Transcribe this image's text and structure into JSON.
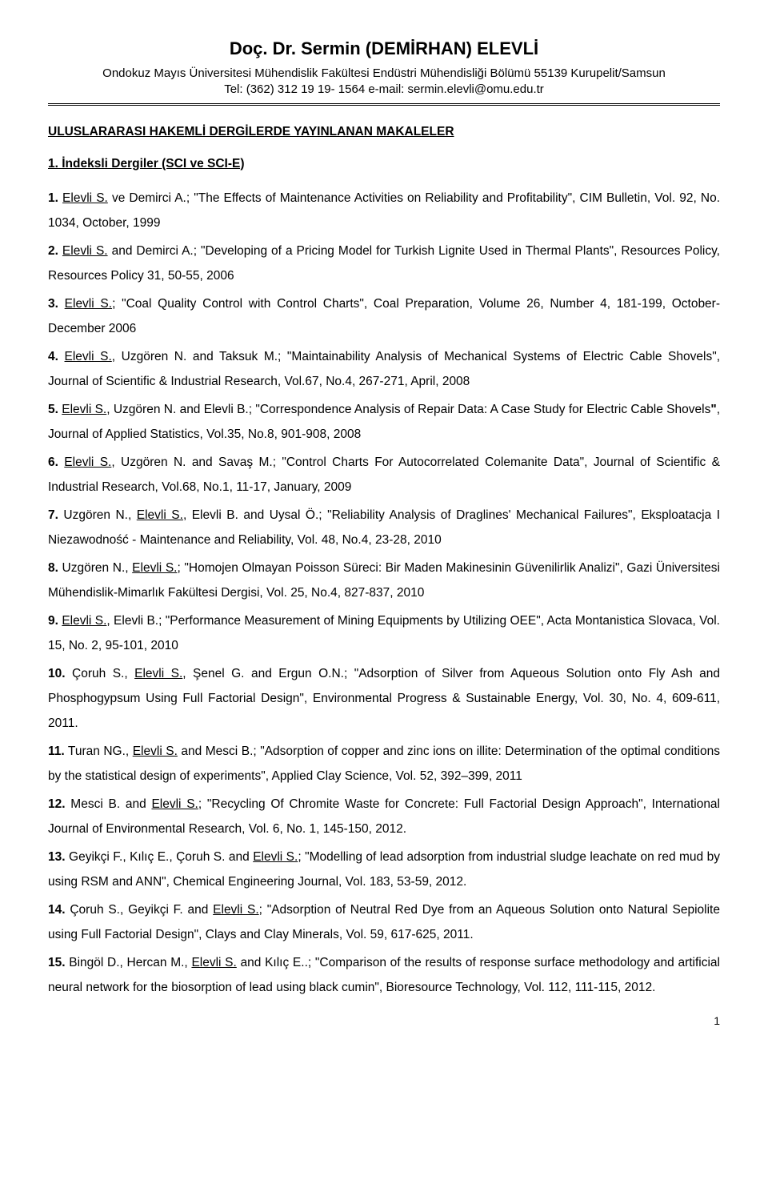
{
  "header": {
    "name": "Doç. Dr. Sermin (DEMİRHAN) ELEVLİ",
    "affil_line1": "Ondokuz Mayıs Üniversitesi Mühendislik Fakültesi Endüstri Mühendisliği Bölümü 55139 Kurupelit/Samsun",
    "affil_line2": "Tel: (362) 312 19 19- 1564 e-mail: sermin.elevli@omu.edu.tr"
  },
  "section_title": "ULUSLARARASI HAKEMLİ DERGİLERDE YAYINLANAN MAKALELER",
  "subsection": "1. İndeksli Dergiler (SCI ve SCI-E)",
  "entries": [
    {
      "n": "1.",
      "auth": "Elevli S.",
      "post": " ve Demirci A.; \"The Effects of Maintenance Activities on Reliability and Profitability\", CIM Bulletin, Vol. 92, No. 1034, October, 1999"
    },
    {
      "n": "2.",
      "auth": "Elevli S.",
      "post": " and Demirci A.; \"Developing of a Pricing Model for Turkish Lignite Used in Thermal Plants\", Resources Policy, Resources Policy 31, 50-55, 2006"
    },
    {
      "n": "3.",
      "auth": "Elevli S.",
      "post": "; \"Coal Quality Control with Control Charts\", Coal Preparation, Volume 26, Number 4, 181-199, October- December 2006"
    },
    {
      "n": "4.",
      "auth": "Elevli S.",
      "post": ", Uzgören N. and Taksuk M.; \"Maintainability Analysis of Mechanical Systems of Electric Cable Shovels\", Journal of Scientific & Industrial Research, Vol.67, No.4, 267-271, April, 2008"
    },
    {
      "n": "5.",
      "auth": "Elevli S.",
      "post": ", Uzgören N. and Elevli B.; \"Correspondence Analysis of Repair Data:  A Case Study for Electric Cable Shovels",
      "tail": ", Journal of Applied Statistics, Vol.35, No.8, 901-908, 2008"
    },
    {
      "n": "6.",
      "auth": "Elevli S.",
      "post": ", Uzgören N. and Savaş M.; \"Control Charts For Autocorrelated Colemanite Data\", Journal of Scientific & Industrial Research, Vol.68, No.1, 11-17, January, 2009"
    },
    {
      "n": "7.",
      "pre": "Uzgören N., ",
      "auth": "Elevli S.",
      "post": ", Elevli B. and Uysal Ö.; \"Reliability Analysis of Draglines' Mechanical Failures\", Eksploatacja I Niezawodność - Maintenance and Reliability, Vol. 48, No.4, 23-28, 2010"
    },
    {
      "n": "8.",
      "pre": "Uzgören N., ",
      "auth": "Elevli S.",
      "post": "; \"Homojen Olmayan Poisson Süreci: Bir Maden Makinesinin Güvenilirlik Analizi\", Gazi Üniversitesi Mühendislik-Mimarlık Fakültesi Dergisi, Vol. 25, No.4, 827-837, 2010"
    },
    {
      "n": "9.",
      "auth": "Elevli S.",
      "post": ", Elevli B.; \"Performance Measurement of Mining Equipments by Utilizing OEE\", Acta Montanistica Slovaca, Vol. 15, No. 2, 95-101, 2010"
    },
    {
      "n": "10.",
      "pre": "Çoruh S., ",
      "auth": "Elevli S.",
      "post": ", Şenel G. and Ergun O.N.; \"Adsorption of Silver from Aqueous Solution onto Fly Ash and Phosphogypsum Using Full Factorial Design\", Environmental Progress & Sustainable Energy, Vol. 30, No. 4, 609-611, 2011."
    },
    {
      "n": "11.",
      "pre": "Turan NG., ",
      "auth": "Elevli S.",
      "post": " and Mesci B.; \"Adsorption of copper and zinc ions on illite: Determination of the optimal conditions by the statistical design of experiments\", Applied Clay Science, Vol. 52, 392–399, 2011"
    },
    {
      "n": "12.",
      "pre": "Mesci B. and ",
      "auth": "Elevli S.",
      "post": "; \"Recycling Of Chromite Waste for Concrete: Full Factorial Design Approach\", International Journal of Environmental Research, Vol. 6, No. 1, 145-150, 2012."
    },
    {
      "n": "13.",
      "pre": "Geyikçi F., Kılıç E., Çoruh S. and ",
      "auth": "Elevli S.",
      "post": "; \"Modelling of lead adsorption from industrial sludge leachate on red mud by using RSM and ANN\", Chemical Engineering Journal, Vol. 183, 53-59, 2012."
    },
    {
      "n": "14.",
      "pre": "Çoruh S., Geyikçi F. and ",
      "auth": "Elevli S.",
      "post": "; \"Adsorption of Neutral Red Dye from an Aqueous Solution onto Natural Sepiolite using Full Factorial Design\", Clays and Clay Minerals, Vol. 59, 617-625, 2011."
    },
    {
      "n": "15.",
      "pre": "Bingöl D., Hercan M., ",
      "auth": "Elevli S.",
      "post": " and Kılıç E..; \"Comparison of the results of response surface methodology and artificial neural network for the biosorption of lead using black cumin\", Bioresource Technology, Vol. 112, 111-115, 2012."
    }
  ],
  "pagenum": "1"
}
